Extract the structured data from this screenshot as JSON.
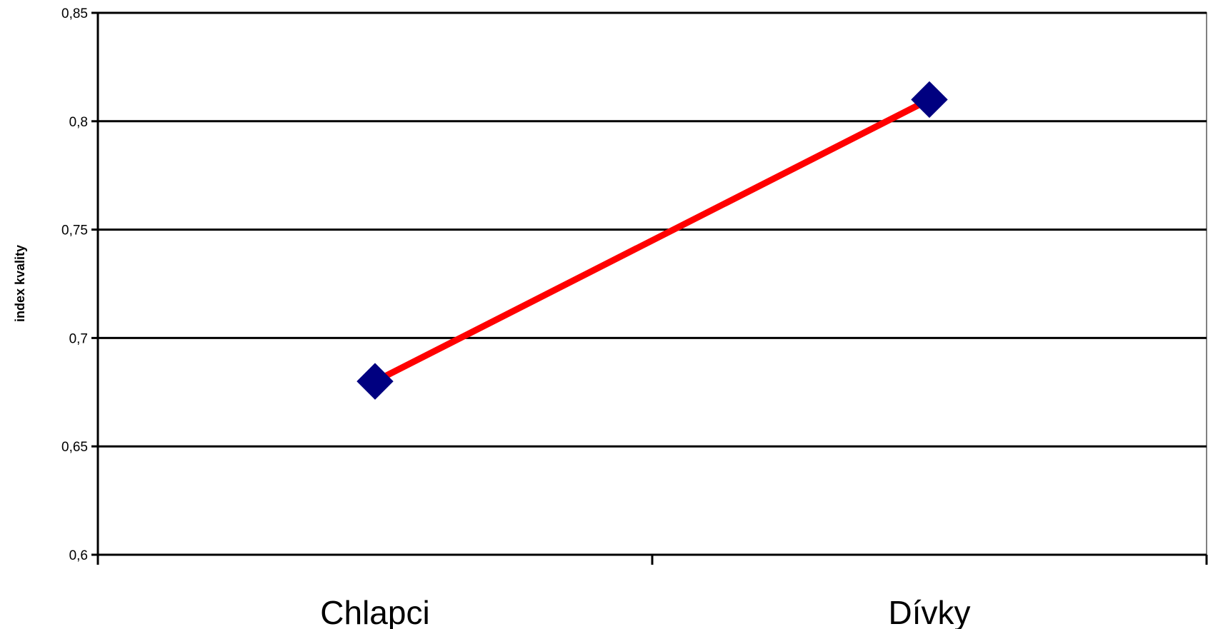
{
  "chart_data": {
    "type": "line",
    "title": "",
    "xlabel": "",
    "ylabel": "index kvality",
    "categories": [
      "Chlapci",
      "Dívky"
    ],
    "series": [
      {
        "values": [
          0.68,
          0.81
        ],
        "line_color": "#ff0000",
        "marker_color": "#000080",
        "marker": "diamond"
      }
    ],
    "ylim": [
      0.6,
      0.85
    ],
    "yticks": [
      0.6,
      0.65,
      0.7,
      0.75,
      0.8,
      0.85
    ],
    "ytick_labels": [
      "0,6",
      "0,65",
      "0,7",
      "0,75",
      "0,8",
      "0,85"
    ],
    "grid": true,
    "legend": "none"
  }
}
